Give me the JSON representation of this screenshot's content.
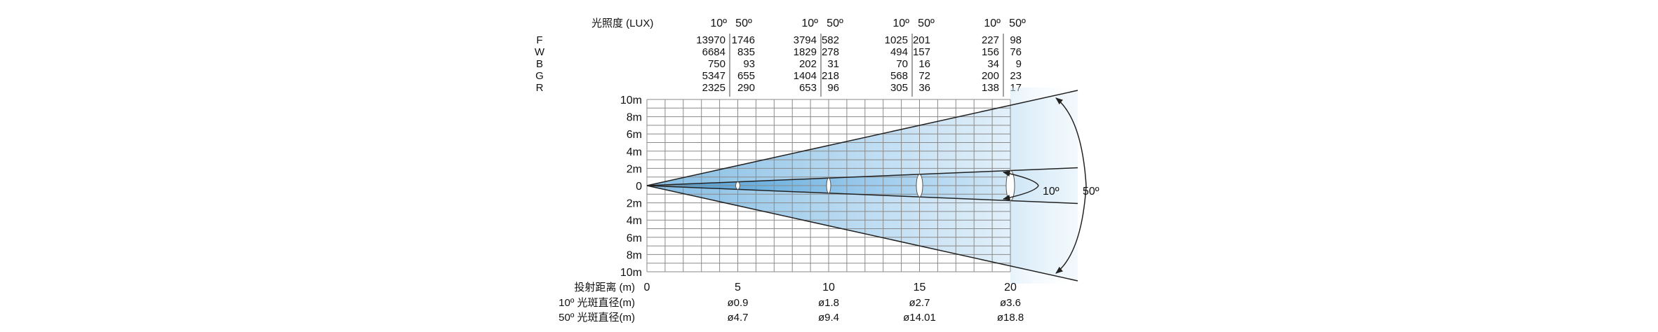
{
  "lux_table": {
    "title": "光照度 (LUX)",
    "angle_narrow": "10º",
    "angle_wide": "50º",
    "rows": [
      {
        "label": "F",
        "values": [
          [
            "13970",
            "1746"
          ],
          [
            "3794",
            "582"
          ],
          [
            "1025",
            "201"
          ],
          [
            "227",
            "98"
          ]
        ]
      },
      {
        "label": "W",
        "values": [
          [
            "6684",
            "835"
          ],
          [
            "1829",
            "278"
          ],
          [
            "494",
            "157"
          ],
          [
            "156",
            "76"
          ]
        ]
      },
      {
        "label": "B",
        "values": [
          [
            "750",
            "93"
          ],
          [
            "202",
            "31"
          ],
          [
            "70",
            "16"
          ],
          [
            "34",
            "9"
          ]
        ]
      },
      {
        "label": "G",
        "values": [
          [
            "5347",
            "655"
          ],
          [
            "1404",
            "218"
          ],
          [
            "568",
            "72"
          ],
          [
            "200",
            "23"
          ]
        ]
      },
      {
        "label": "R",
        "values": [
          [
            "2325",
            "290"
          ],
          [
            "653",
            "96"
          ],
          [
            "305",
            "36"
          ],
          [
            "138",
            "17"
          ]
        ]
      }
    ]
  },
  "beam_diagram": {
    "y_ticks": [
      "10m",
      "8m",
      "6m",
      "4m",
      "2m",
      "0",
      "2m",
      "4m",
      "6m",
      "8m",
      "10m"
    ],
    "y_range_m": [
      -10,
      10
    ],
    "x_range_m": [
      0,
      20
    ],
    "grid_step_m": 1,
    "narrow_angle_deg": 10,
    "wide_angle_deg": 50,
    "narrow_label": "10º",
    "wide_label": "50º",
    "colors": {
      "beam_core": "#2f8fd0",
      "beam_edge": "#d6ebf8",
      "grid": "#888888",
      "line": "#222222"
    }
  },
  "distance_row": {
    "label": "投射距离 (m)",
    "ticks": [
      {
        "value": 0,
        "label": "0"
      },
      {
        "value": 5,
        "label": "5"
      },
      {
        "value": 10,
        "label": "10"
      },
      {
        "value": 15,
        "label": "15"
      },
      {
        "value": 20,
        "label": "20"
      }
    ]
  },
  "spot_rows": [
    {
      "label": "10º 光斑直径(m)",
      "values": [
        "ø0.9",
        "ø1.8",
        "ø2.7",
        "ø3.6"
      ]
    },
    {
      "label": "50º 光斑直径(m)",
      "values": [
        "ø4.7",
        "ø9.4",
        "ø14.01",
        "ø18.8"
      ]
    }
  ]
}
